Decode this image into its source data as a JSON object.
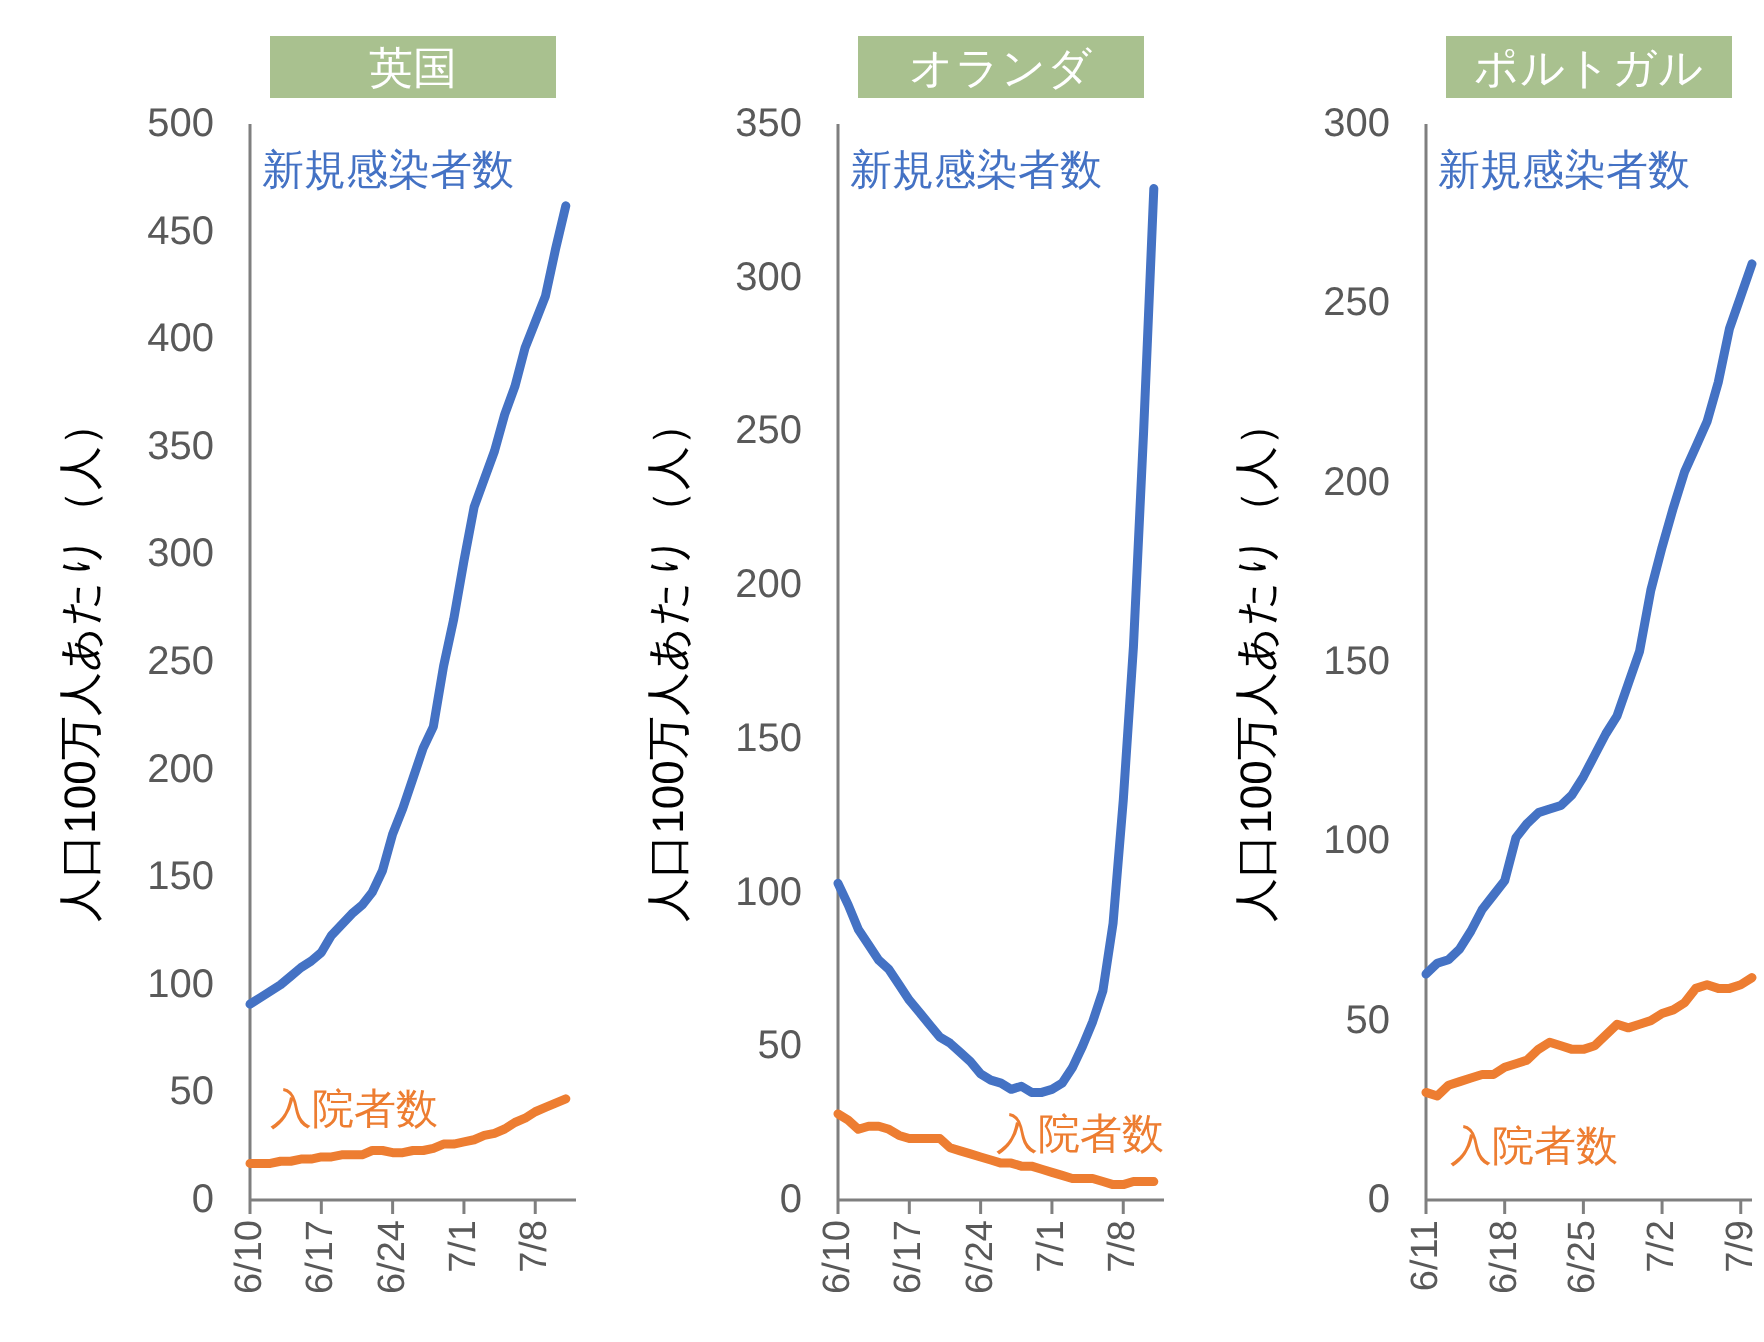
{
  "chart_data": [
    {
      "type": "line",
      "title": "英国",
      "ylabel": "人口100万人あたり（人）",
      "x": [
        "--06-10",
        "--06-11",
        "--06-12",
        "--06-13",
        "--06-14",
        "--06-15",
        "--06-16",
        "--06-17",
        "--06-18",
        "--06-19",
        "--06-20",
        "--06-21",
        "--06-22",
        "--06-23",
        "--06-24",
        "--06-25",
        "--06-26",
        "--06-27",
        "--06-28",
        "--06-29",
        "--06-30",
        "--07-01",
        "--07-02",
        "--07-03",
        "--07-04",
        "--07-05",
        "--07-06",
        "--07-07",
        "--07-08",
        "--07-09",
        "--07-10",
        "--07-11"
      ],
      "xlim": [
        "--06-10",
        "--07-12"
      ],
      "xticks": [
        {
          "value": "--06-10",
          "label": "6/10"
        },
        {
          "value": "--06-17",
          "label": "6/17"
        },
        {
          "value": "--06-24",
          "label": "6/24"
        },
        {
          "value": "--07-01",
          "label": "7/1"
        },
        {
          "value": "--07-08",
          "label": "7/8"
        }
      ],
      "ylim": [
        0,
        500
      ],
      "yticks": [
        0,
        50,
        100,
        150,
        200,
        250,
        300,
        350,
        400,
        450,
        500
      ],
      "series": [
        {
          "name": "新規感染者数",
          "color": "#4472c4",
          "values": [
            91,
            94,
            97,
            100,
            104,
            108,
            111,
            115,
            123,
            128,
            133,
            137,
            143,
            153,
            170,
            182,
            196,
            210,
            220,
            248,
            270,
            297,
            322,
            335,
            348,
            365,
            378,
            396,
            408,
            420,
            442,
            462
          ]
        },
        {
          "name": "入院者数",
          "color": "#ed7d31",
          "values": [
            17,
            17,
            17,
            18,
            18,
            19,
            19,
            20,
            20,
            21,
            21,
            21,
            23,
            23,
            22,
            22,
            23,
            23,
            24,
            26,
            26,
            27,
            28,
            30,
            31,
            33,
            36,
            38,
            41,
            43,
            45,
            47
          ]
        }
      ]
    },
    {
      "type": "line",
      "title": "オランダ",
      "ylabel": "人口100万人あたり（人）",
      "x": [
        "--06-10",
        "--06-11",
        "--06-12",
        "--06-13",
        "--06-14",
        "--06-15",
        "--06-16",
        "--06-17",
        "--06-18",
        "--06-19",
        "--06-20",
        "--06-21",
        "--06-22",
        "--06-23",
        "--06-24",
        "--06-25",
        "--06-26",
        "--06-27",
        "--06-28",
        "--06-29",
        "--06-30",
        "--07-01",
        "--07-02",
        "--07-03",
        "--07-04",
        "--07-05",
        "--07-06",
        "--07-07",
        "--07-08",
        "--07-09",
        "--07-10",
        "--07-11"
      ],
      "xlim": [
        "--06-10",
        "--07-12"
      ],
      "xticks": [
        {
          "value": "--06-10",
          "label": "6/10"
        },
        {
          "value": "--06-17",
          "label": "6/17"
        },
        {
          "value": "--06-24",
          "label": "6/24"
        },
        {
          "value": "--07-01",
          "label": "7/1"
        },
        {
          "value": "--07-08",
          "label": "7/8"
        }
      ],
      "ylim": [
        0,
        350
      ],
      "yticks": [
        0,
        50,
        100,
        150,
        200,
        250,
        300,
        350
      ],
      "series": [
        {
          "name": "新規感染者数",
          "color": "#4472c4",
          "values": [
            103,
            96,
            88,
            83,
            78,
            75,
            70,
            65,
            61,
            57,
            53,
            51,
            48,
            45,
            41,
            39,
            38,
            36,
            37,
            35,
            35,
            36,
            38,
            43,
            50,
            58,
            68,
            90,
            130,
            180,
            250,
            329
          ]
        },
        {
          "name": "入院者数",
          "color": "#ed7d31",
          "values": [
            28,
            26,
            23,
            24,
            24,
            23,
            21,
            20,
            20,
            20,
            20,
            17,
            16,
            15,
            14,
            13,
            12,
            12,
            11,
            11,
            10,
            9,
            8,
            7,
            7,
            7,
            6,
            5,
            5,
            6,
            6,
            6
          ]
        }
      ]
    },
    {
      "type": "line",
      "title": "ポルトガル",
      "ylabel": "人口100万人あたり（人）",
      "x": [
        "--06-11",
        "--06-12",
        "--06-13",
        "--06-14",
        "--06-15",
        "--06-16",
        "--06-17",
        "--06-18",
        "--06-19",
        "--06-20",
        "--06-21",
        "--06-22",
        "--06-23",
        "--06-24",
        "--06-25",
        "--06-26",
        "--06-27",
        "--06-28",
        "--06-29",
        "--06-30",
        "--07-01",
        "--07-02",
        "--07-03",
        "--07-04",
        "--07-05",
        "--07-06",
        "--07-07",
        "--07-08",
        "--07-09",
        "--07-10"
      ],
      "xlim": [
        "--06-11",
        "--07-10"
      ],
      "xticks": [
        {
          "value": "--06-11",
          "label": "6/11"
        },
        {
          "value": "--06-18",
          "label": "6/18"
        },
        {
          "value": "--06-25",
          "label": "6/25"
        },
        {
          "value": "--07-02",
          "label": "7/2"
        },
        {
          "value": "--07-09",
          "label": "7/9"
        }
      ],
      "ylim": [
        0,
        300
      ],
      "yticks": [
        0,
        50,
        100,
        150,
        200,
        250,
        300
      ],
      "series": [
        {
          "name": "新規感染者数",
          "color": "#4472c4",
          "values": [
            63,
            66,
            67,
            70,
            75,
            81,
            85,
            89,
            101,
            105,
            108,
            109,
            110,
            113,
            118,
            124,
            130,
            135,
            144,
            153,
            170,
            182,
            193,
            203,
            210,
            217,
            228,
            243,
            252,
            261
          ]
        },
        {
          "name": "入院者数",
          "color": "#ed7d31",
          "values": [
            30,
            29,
            32,
            33,
            34,
            35,
            35,
            37,
            38,
            39,
            42,
            44,
            43,
            42,
            42,
            43,
            46,
            49,
            48,
            49,
            50,
            52,
            53,
            55,
            59,
            60,
            59,
            59,
            60,
            62
          ]
        }
      ]
    }
  ]
}
